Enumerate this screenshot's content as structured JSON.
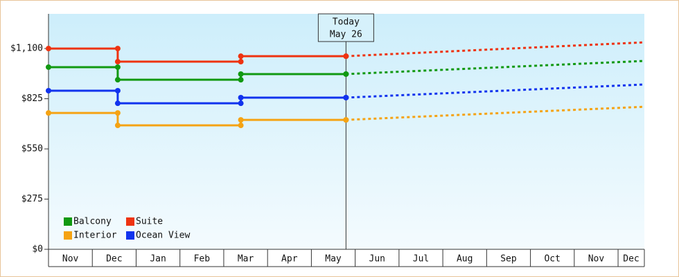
{
  "chart_data": {
    "type": "step-line",
    "categories": [
      "Nov",
      "Dec",
      "Jan",
      "Feb",
      "Mar",
      "Apr",
      "May",
      "Jun",
      "Jul",
      "Aug",
      "Sep",
      "Oct",
      "Nov",
      "Dec"
    ],
    "xlim": [
      0,
      13.6
    ],
    "ylim": [
      0,
      1290
    ],
    "yticks": [
      {
        "value": 0,
        "label": "$0"
      },
      {
        "value": 275,
        "label": "$275"
      },
      {
        "value": 550,
        "label": "$550"
      },
      {
        "value": 825,
        "label": "$825"
      },
      {
        "value": 1100,
        "label": "$1,100"
      }
    ],
    "x": [
      0,
      1.58,
      4.39,
      6.79
    ],
    "forecast_x": [
      6.79,
      13.6
    ],
    "today": {
      "x": 6.79,
      "label": [
        "Today",
        "May 26"
      ]
    },
    "legend": "lower left",
    "series": [
      {
        "name": "Balcony",
        "color": "#119911",
        "values": [
          998,
          929,
          960,
          960
        ],
        "forecast_values": [
          960,
          1032
        ]
      },
      {
        "name": "Suite",
        "color": "#ee3311",
        "values": [
          1100,
          1028,
          1058,
          1058
        ],
        "forecast_values": [
          1058,
          1134
        ]
      },
      {
        "name": "Interior",
        "color": "#f5a313",
        "values": [
          747,
          679,
          709,
          709
        ],
        "forecast_values": [
          709,
          781
        ]
      },
      {
        "name": "Ocean View",
        "color": "#1133ee",
        "values": [
          869,
          800,
          831,
          831
        ],
        "forecast_values": [
          831,
          903
        ]
      }
    ]
  }
}
